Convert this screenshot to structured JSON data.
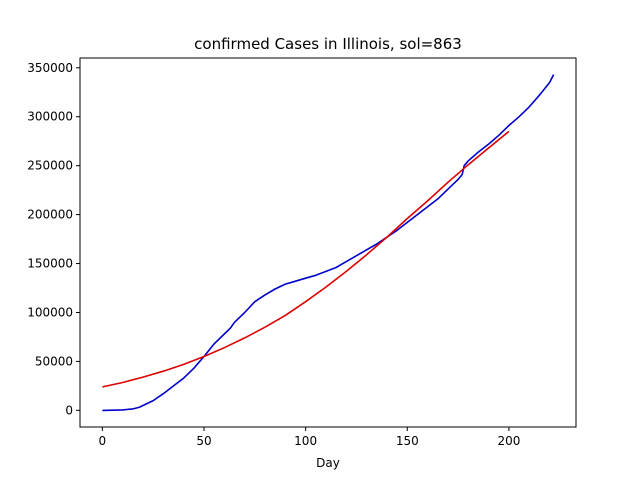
{
  "chart_data": {
    "type": "line",
    "title": "confirmed Cases in Illinois, sol=863",
    "xlabel": "Day",
    "ylabel": "",
    "xlim": [
      -11,
      233
    ],
    "ylim": [
      -17000,
      360000
    ],
    "x_ticks": [
      0,
      50,
      100,
      150,
      200
    ],
    "y_ticks": [
      0,
      50000,
      100000,
      150000,
      200000,
      250000,
      300000,
      350000
    ],
    "grid": false,
    "series": [
      {
        "color": "#0000cc",
        "x": [
          0,
          5,
          10,
          15,
          18,
          20,
          25,
          30,
          35,
          40,
          45,
          50,
          55,
          60,
          63,
          65,
          68,
          70,
          75,
          80,
          85,
          90,
          95,
          100,
          105,
          110,
          115,
          120,
          125,
          130,
          135,
          140,
          145,
          150,
          155,
          160,
          165,
          170,
          175,
          177,
          178,
          180,
          185,
          190,
          195,
          200,
          205,
          210,
          215,
          220,
          222
        ],
        "y": [
          0,
          200,
          500,
          1500,
          3000,
          5000,
          10000,
          17000,
          25000,
          33000,
          43000,
          55000,
          68000,
          78000,
          84000,
          90000,
          96000,
          100000,
          111000,
          118000,
          124000,
          129000,
          132000,
          135000,
          138000,
          142000,
          146000,
          152000,
          158000,
          164000,
          170000,
          177000,
          184000,
          192000,
          200000,
          208000,
          216000,
          226000,
          236000,
          241000,
          250000,
          255000,
          264000,
          272000,
          281000,
          291000,
          300000,
          310000,
          322000,
          335000,
          343000
        ]
      },
      {
        "color": "#dd0000",
        "x": [
          0,
          10,
          20,
          30,
          40,
          50,
          60,
          70,
          80,
          90,
          100,
          110,
          120,
          130,
          140,
          150,
          160,
          170,
          180,
          190,
          200
        ],
        "y": [
          24000,
          28500,
          34000,
          40000,
          47000,
          55000,
          64000,
          74000,
          85000,
          97000,
          111000,
          126000,
          142000,
          159000,
          177000,
          196000,
          214000,
          233000,
          251000,
          268000,
          285000
        ]
      }
    ]
  }
}
